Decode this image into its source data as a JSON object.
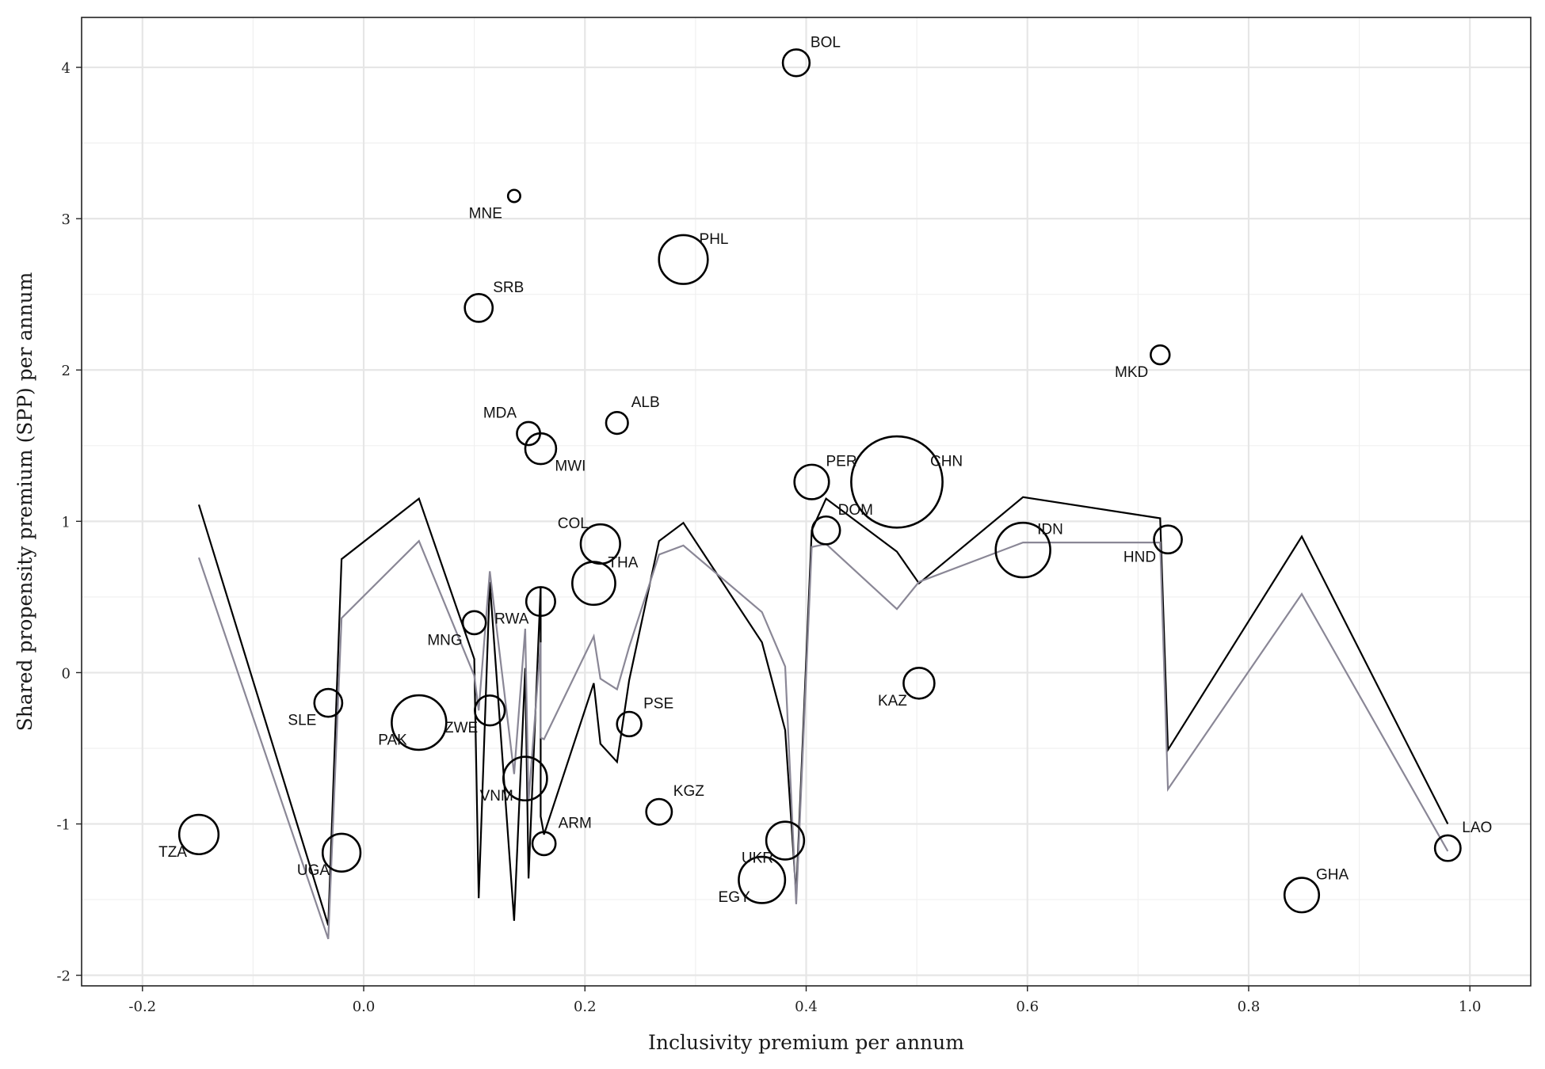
{
  "chart_data": {
    "type": "scatter",
    "title": "",
    "xlabel": "Inclusivity premium per annum",
    "ylabel": "Shared propensity premium (SPP) per annum",
    "xlim": [
      -0.255,
      1.055
    ],
    "ylim": [
      -2.07,
      4.33
    ],
    "xticks": [
      -0.2,
      0.0,
      0.2,
      0.4,
      0.6,
      0.8,
      1.0
    ],
    "xtick_labels": [
      "-0.2",
      "0.0",
      "0.2",
      "0.4",
      "0.6",
      "0.8",
      "1.0"
    ],
    "yticks": [
      -2,
      -1,
      0,
      1,
      2,
      3,
      4
    ],
    "ytick_labels": [
      "-2",
      "-1",
      "0",
      "1",
      "2",
      "3",
      "4"
    ],
    "grid": true,
    "legend": "none",
    "points": [
      {
        "label": "BOL",
        "x": 0.391,
        "y": 4.03,
        "size": 1.2
      },
      {
        "label": "MNE",
        "x": 0.136,
        "y": 3.15,
        "size": 0.4
      },
      {
        "label": "PHL",
        "x": 0.289,
        "y": 2.73,
        "size": 4.0
      },
      {
        "label": "SRB",
        "x": 0.104,
        "y": 2.41,
        "size": 1.3
      },
      {
        "label": "MKD",
        "x": 0.72,
        "y": 2.1,
        "size": 0.6
      },
      {
        "label": "ALB",
        "x": 0.229,
        "y": 1.65,
        "size": 0.8
      },
      {
        "label": "MDA",
        "x": 0.149,
        "y": 1.58,
        "size": 0.9
      },
      {
        "label": "MWI",
        "x": 0.16,
        "y": 1.48,
        "size": 1.6
      },
      {
        "label": "CHN",
        "x": 0.482,
        "y": 1.26,
        "size": 14.0
      },
      {
        "label": "PER",
        "x": 0.405,
        "y": 1.26,
        "size": 2.0
      },
      {
        "label": "DOM",
        "x": 0.418,
        "y": 0.94,
        "size": 1.3
      },
      {
        "label": "COL",
        "x": 0.214,
        "y": 0.85,
        "size": 2.6
      },
      {
        "label": "IDN",
        "x": 0.596,
        "y": 0.81,
        "size": 5.0
      },
      {
        "label": "HND",
        "x": 0.727,
        "y": 0.88,
        "size": 1.3
      },
      {
        "label": "THA",
        "x": 0.208,
        "y": 0.59,
        "size": 3.1
      },
      {
        "label": "RWA",
        "x": 0.16,
        "y": 0.47,
        "size": 1.4
      },
      {
        "label": "MNG",
        "x": 0.1,
        "y": 0.33,
        "size": 0.9
      },
      {
        "label": "KAZ",
        "x": 0.502,
        "y": -0.07,
        "size": 1.6
      },
      {
        "label": "SLE",
        "x": -0.032,
        "y": -0.2,
        "size": 1.3
      },
      {
        "label": "ZWE",
        "x": 0.114,
        "y": -0.25,
        "size": 1.5
      },
      {
        "label": "PAK",
        "x": 0.05,
        "y": -0.33,
        "size": 5.0
      },
      {
        "label": "PSE",
        "x": 0.24,
        "y": -0.34,
        "size": 1.0
      },
      {
        "label": "VNM",
        "x": 0.146,
        "y": -0.7,
        "size": 3.2
      },
      {
        "label": "KGZ",
        "x": 0.267,
        "y": -0.92,
        "size": 1.1
      },
      {
        "label": "ARM",
        "x": 0.163,
        "y": -1.13,
        "size": 0.9
      },
      {
        "label": "UKR",
        "x": 0.381,
        "y": -1.11,
        "size": 2.4
      },
      {
        "label": "EGY",
        "x": 0.36,
        "y": -1.37,
        "size": 3.6
      },
      {
        "label": "TZA",
        "x": -0.149,
        "y": -1.07,
        "size": 2.6
      },
      {
        "label": "UGA",
        "x": -0.02,
        "y": -1.19,
        "size": 2.4
      },
      {
        "label": "GHA",
        "x": 0.848,
        "y": -1.47,
        "size": 2.0
      },
      {
        "label": "LAO",
        "x": 0.98,
        "y": -1.16,
        "size": 1.1
      }
    ],
    "series": [
      {
        "color": "#000000",
        "x": [
          -0.149,
          -0.032,
          -0.02,
          0.05,
          0.1,
          0.104,
          0.114,
          0.136,
          0.146,
          0.149,
          0.16,
          0.16,
          0.163,
          0.208,
          0.214,
          0.229,
          0.24,
          0.267,
          0.289,
          0.36,
          0.381,
          0.391,
          0.405,
          0.418,
          0.482,
          0.502,
          0.596,
          0.72,
          0.727,
          0.848,
          0.98
        ],
        "y": [
          1.11,
          -1.67,
          0.75,
          1.15,
          0.09,
          -1.49,
          0.6,
          -1.64,
          0.03,
          -1.36,
          0.57,
          -0.95,
          -1.07,
          -0.07,
          -0.47,
          -0.59,
          -0.05,
          0.87,
          0.99,
          0.2,
          -0.38,
          -1.47,
          0.94,
          1.15,
          0.8,
          0.59,
          1.16,
          1.02,
          -0.51,
          0.9,
          -1.0
        ]
      },
      {
        "color": "#8a8796",
        "x": [
          -0.149,
          -0.032,
          -0.02,
          0.05,
          0.1,
          0.104,
          0.114,
          0.136,
          0.146,
          0.149,
          0.16,
          0.16,
          0.163,
          0.208,
          0.214,
          0.229,
          0.24,
          0.267,
          0.289,
          0.36,
          0.381,
          0.391,
          0.405,
          0.418,
          0.482,
          0.502,
          0.596,
          0.72,
          0.727,
          0.848,
          0.98
        ],
        "y": [
          0.76,
          -1.76,
          0.36,
          0.87,
          -0.02,
          -0.25,
          0.67,
          -0.67,
          0.29,
          -0.85,
          0.2,
          -0.43,
          -0.44,
          0.24,
          -0.04,
          -0.11,
          0.17,
          0.78,
          0.84,
          0.4,
          0.04,
          -1.53,
          0.83,
          0.85,
          0.42,
          0.6,
          0.86,
          0.86,
          -0.77,
          0.52,
          -1.18
        ]
      }
    ]
  }
}
